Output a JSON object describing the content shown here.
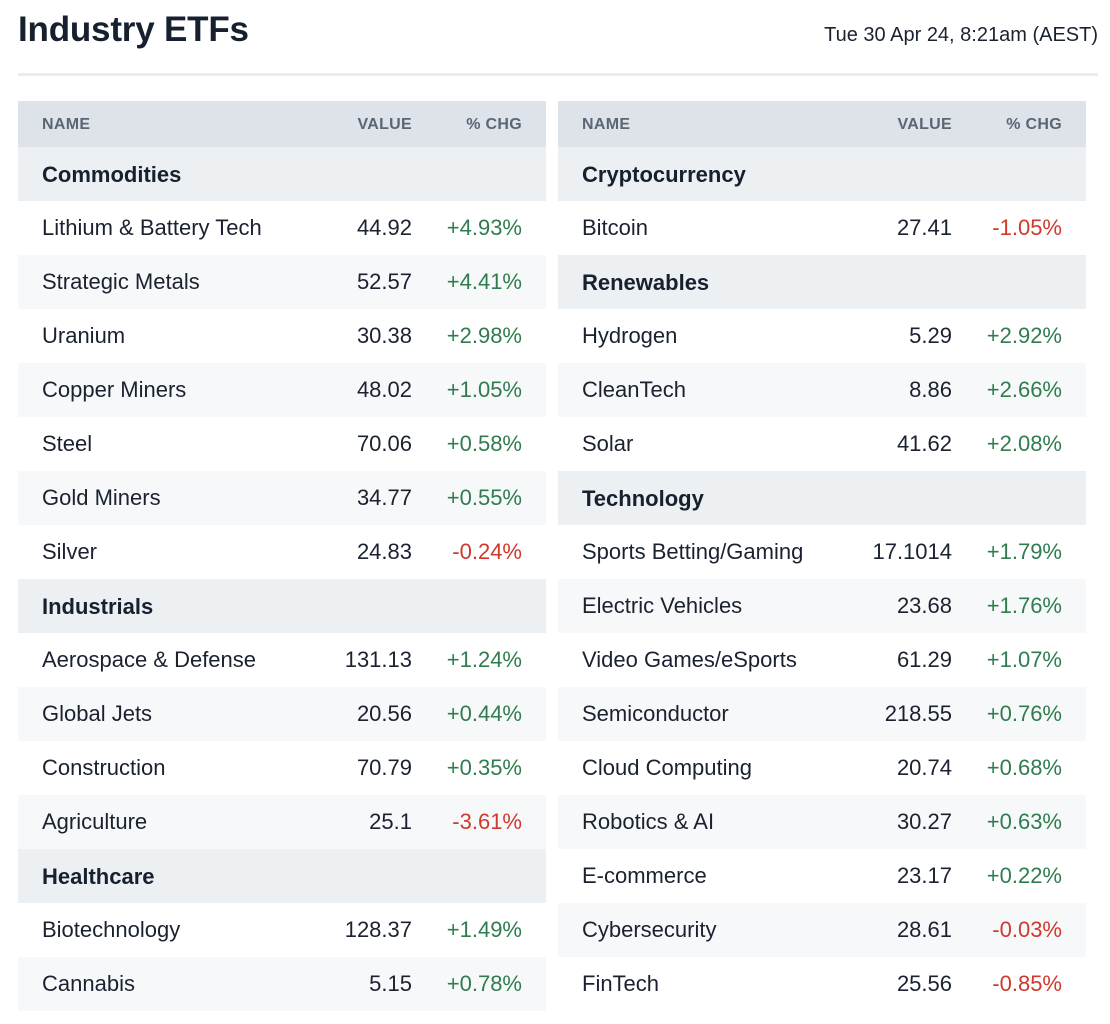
{
  "header": {
    "title": "Industry ETFs",
    "timestamp": "Tue 30 Apr 24, 8:21am (AEST)"
  },
  "columns": {
    "name": "NAME",
    "value": "VALUE",
    "chg": "% CHG"
  },
  "colors": {
    "positive": "#2f7d4e",
    "negative": "#d0392b"
  },
  "left_panel": [
    {
      "type": "category",
      "label": "Commodities"
    },
    {
      "type": "row",
      "name": "Lithium & Battery Tech",
      "value": "44.92",
      "chg": "+4.93%",
      "dir": "pos"
    },
    {
      "type": "row",
      "name": "Strategic Metals",
      "value": "52.57",
      "chg": "+4.41%",
      "dir": "pos"
    },
    {
      "type": "row",
      "name": "Uranium",
      "value": "30.38",
      "chg": "+2.98%",
      "dir": "pos"
    },
    {
      "type": "row",
      "name": "Copper Miners",
      "value": "48.02",
      "chg": "+1.05%",
      "dir": "pos"
    },
    {
      "type": "row",
      "name": "Steel",
      "value": "70.06",
      "chg": "+0.58%",
      "dir": "pos"
    },
    {
      "type": "row",
      "name": "Gold Miners",
      "value": "34.77",
      "chg": "+0.55%",
      "dir": "pos"
    },
    {
      "type": "row",
      "name": "Silver",
      "value": "24.83",
      "chg": "-0.24%",
      "dir": "neg"
    },
    {
      "type": "category",
      "label": "Industrials"
    },
    {
      "type": "row",
      "name": "Aerospace & Defense",
      "value": "131.13",
      "chg": "+1.24%",
      "dir": "pos"
    },
    {
      "type": "row",
      "name": "Global Jets",
      "value": "20.56",
      "chg": "+0.44%",
      "dir": "pos"
    },
    {
      "type": "row",
      "name": "Construction",
      "value": "70.79",
      "chg": "+0.35%",
      "dir": "pos"
    },
    {
      "type": "row",
      "name": "Agriculture",
      "value": "25.1",
      "chg": "-3.61%",
      "dir": "neg"
    },
    {
      "type": "category",
      "label": "Healthcare"
    },
    {
      "type": "row",
      "name": "Biotechnology",
      "value": "128.37",
      "chg": "+1.49%",
      "dir": "pos"
    },
    {
      "type": "row",
      "name": "Cannabis",
      "value": "5.15",
      "chg": "+0.78%",
      "dir": "pos"
    }
  ],
  "right_panel": [
    {
      "type": "category",
      "label": "Cryptocurrency"
    },
    {
      "type": "row",
      "name": "Bitcoin",
      "value": "27.41",
      "chg": "-1.05%",
      "dir": "neg"
    },
    {
      "type": "category",
      "label": "Renewables"
    },
    {
      "type": "row",
      "name": "Hydrogen",
      "value": "5.29",
      "chg": "+2.92%",
      "dir": "pos"
    },
    {
      "type": "row",
      "name": "CleanTech",
      "value": "8.86",
      "chg": "+2.66%",
      "dir": "pos"
    },
    {
      "type": "row",
      "name": "Solar",
      "value": "41.62",
      "chg": "+2.08%",
      "dir": "pos"
    },
    {
      "type": "category",
      "label": "Technology"
    },
    {
      "type": "row",
      "name": "Sports Betting/Gaming",
      "value": "17.1014",
      "chg": "+1.79%",
      "dir": "pos"
    },
    {
      "type": "row",
      "name": "Electric Vehicles",
      "value": "23.68",
      "chg": "+1.76%",
      "dir": "pos"
    },
    {
      "type": "row",
      "name": "Video Games/eSports",
      "value": "61.29",
      "chg": "+1.07%",
      "dir": "pos"
    },
    {
      "type": "row",
      "name": "Semiconductor",
      "value": "218.55",
      "chg": "+0.76%",
      "dir": "pos"
    },
    {
      "type": "row",
      "name": "Cloud Computing",
      "value": "20.74",
      "chg": "+0.68%",
      "dir": "pos"
    },
    {
      "type": "row",
      "name": "Robotics & AI",
      "value": "30.27",
      "chg": "+0.63%",
      "dir": "pos"
    },
    {
      "type": "row",
      "name": "E-commerce",
      "value": "23.17",
      "chg": "+0.22%",
      "dir": "pos"
    },
    {
      "type": "row",
      "name": "Cybersecurity",
      "value": "28.61",
      "chg": "-0.03%",
      "dir": "neg"
    },
    {
      "type": "row",
      "name": "FinTech",
      "value": "25.56",
      "chg": "-0.85%",
      "dir": "neg"
    }
  ]
}
